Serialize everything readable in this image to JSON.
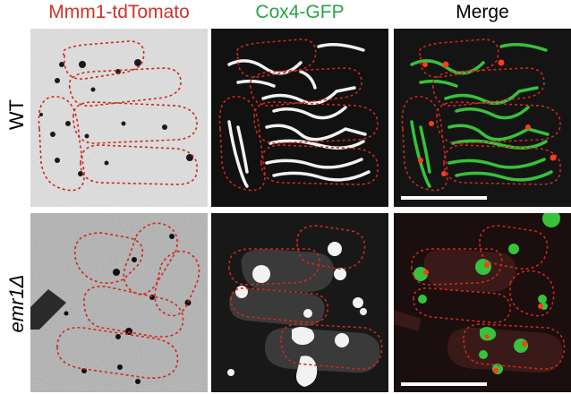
{
  "columns": [
    {
      "label": "Mmm1-tdTomato",
      "color": "#d2312a"
    },
    {
      "label": "Cox4-GFP",
      "color": "#2aa244"
    },
    {
      "label": "Merge",
      "color": "#000000"
    }
  ],
  "rows": [
    {
      "label": "WT",
      "italic": false
    },
    {
      "label": "emr1Δ",
      "italic": true
    }
  ],
  "colors": {
    "outline": "#d0281c",
    "mito_green": "#36c23a",
    "mito_white": "#f2f2f2",
    "punctum_red": "#ff3a1a",
    "scale_bar": "#ffffff"
  }
}
